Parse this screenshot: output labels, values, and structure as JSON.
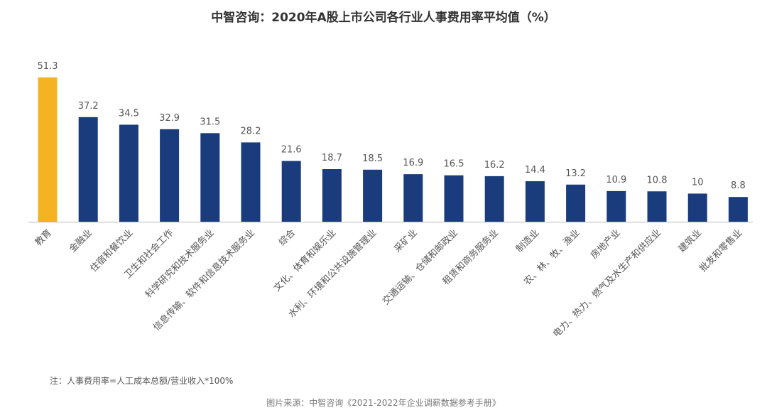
{
  "chart_data": {
    "type": "bar",
    "title": "中智咨询：2020年A股上市公司各行业人事费用率平均值（%）",
    "categories": [
      "教育",
      "金融业",
      "住宿和餐饮业",
      "卫生和社会工作",
      "科学研究和技术服务业",
      "信息传输、软件和信息技术服务业",
      "综合",
      "文化、体育和娱乐业",
      "水利、环境和公共设施管理业",
      "采矿业",
      "交通运输、仓储和邮政业",
      "租赁和商务服务业",
      "制造业",
      "农、林、牧、渔业",
      "房地产业",
      "电力、热力、燃气及水生产和供应业",
      "建筑业",
      "批发和零售业"
    ],
    "values": [
      51.3,
      37.2,
      34.5,
      32.9,
      31.5,
      28.2,
      21.6,
      18.7,
      18.5,
      16.9,
      16.5,
      16.2,
      14.4,
      13.2,
      10.9,
      10.8,
      10,
      8.8
    ],
    "highlight_index": 0,
    "colors": {
      "bar": "#1a3c7c",
      "highlight": "#f5b323",
      "axis": "#bbbbbb",
      "label": "#555555"
    },
    "ylim": [
      0,
      55
    ],
    "grid": false,
    "xlabel": "",
    "ylabel": ""
  },
  "note": "注：人事费用率=人工成本总额/营业收入*100%",
  "source": "图片来源：中智咨询《2021-2022年企业调薪数据参考手册》"
}
